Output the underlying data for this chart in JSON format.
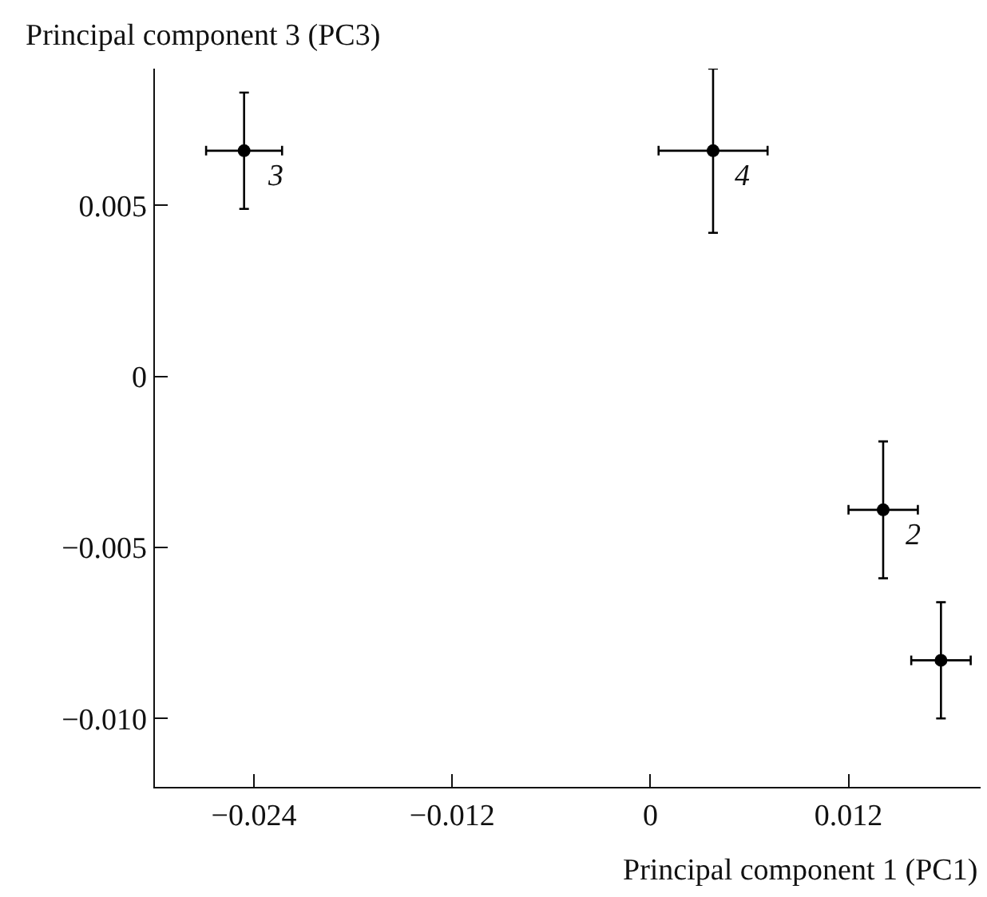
{
  "chart_data": {
    "type": "scatter",
    "xlabel": "Principal component 1 (PC1)",
    "ylabel": "Principal component 3 (PC3)",
    "x": [
      -0.0246,
      0.0038,
      0.0141,
      0.0176
    ],
    "values": [
      0.0066,
      0.0066,
      -0.0039,
      -0.0083
    ],
    "errors": [
      0.0017,
      0.0024,
      0.002,
      0.0017
    ],
    "xerrors": [
      0.0023,
      0.0033,
      0.0021,
      0.0018
    ],
    "color": "#000000",
    "marker": "circle",
    "xlim": [
      -0.03,
      0.02
    ],
    "xticks": [
      {
        "value": -0.024,
        "label": "−0.024"
      },
      {
        "value": -0.012,
        "label": "−0.012"
      },
      0,
      0.012
    ],
    "ylim": [
      -0.012,
      0.009
    ],
    "yticks": [
      {
        "value": -0.01,
        "label": "−0.010"
      },
      {
        "value": -0.005,
        "label": "−0.005"
      },
      0,
      0.005
    ],
    "annotations": [
      {
        "text": "3",
        "x": -0.0246,
        "y": 0.0066
      },
      {
        "text": "4",
        "x": 0.0038,
        "y": 0.0066
      },
      {
        "text": "2",
        "x": 0.0141,
        "y": -0.0039
      }
    ]
  }
}
